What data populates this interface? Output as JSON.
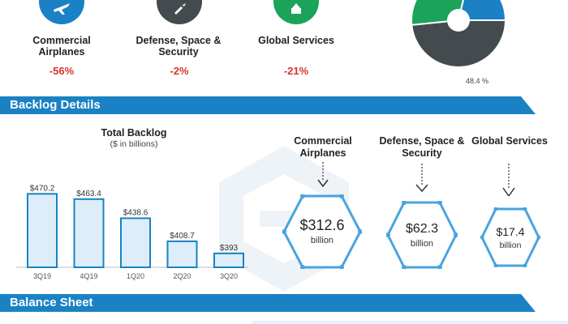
{
  "segments": [
    {
      "name": "Commercial Airplanes",
      "change": "-56%",
      "color": "#1a82c4",
      "icon": "airplane-icon"
    },
    {
      "name": "Defense, Space & Security",
      "change": "-2%",
      "color": "#444b4e",
      "icon": "rocket-icon"
    },
    {
      "name": "Global Services",
      "change": "-21%",
      "color": "#1ca35a",
      "icon": "services-icon"
    }
  ],
  "pie": {
    "label": "48.4 %",
    "slices": [
      {
        "share": 48.4,
        "color": "#444b4e"
      },
      {
        "share": 30.3,
        "color": "#1ca35a"
      },
      {
        "share": 21.3,
        "color": "#1a82c4"
      }
    ]
  },
  "sections": {
    "backlog": "Backlog Details",
    "balance": "Balance Sheet"
  },
  "chart_data": {
    "type": "bar",
    "title": "Total Backlog",
    "subtitle": "($ in billions)",
    "categories": [
      "3Q19",
      "4Q19",
      "1Q20",
      "2Q20",
      "3Q20"
    ],
    "values": [
      470.2,
      463.4,
      438.6,
      408.7,
      393
    ],
    "data_labels": [
      "$470.2",
      "$463.4",
      "$438.6",
      "$408.7",
      "$393"
    ],
    "ylim": [
      375,
      480
    ],
    "bar_color": "#ddeefa",
    "bar_border": "#1a82c4",
    "grid": false
  },
  "backlog_segments": [
    {
      "name": "Commercial Airplanes",
      "value": "$312.6",
      "unit": "billion"
    },
    {
      "name": "Defense, Space & Security",
      "value": "$62.3",
      "unit": "billion"
    },
    {
      "name": "Global Services",
      "value": "$17.4",
      "unit": "billion"
    }
  ],
  "colors": {
    "accent": "#1a82c4",
    "negative": "#d9332b",
    "hex_stroke": "#4aa3e0"
  }
}
